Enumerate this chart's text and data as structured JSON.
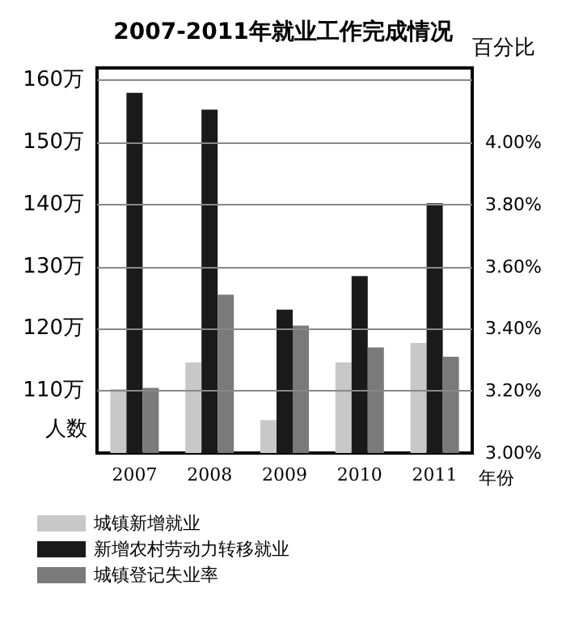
{
  "chart_data": {
    "type": "bar",
    "title": "2007-2011年就业工作完成情况",
    "xlabel": "年份",
    "ylabel": "人数",
    "y2label": "百分比",
    "categories": [
      "2007",
      "2008",
      "2009",
      "2010",
      "2011"
    ],
    "series": [
      {
        "name": "城镇新增就业",
        "color": "#c8c8c8",
        "values": [
          110.3,
          114.6,
          105.3,
          114.6,
          117.7
        ]
      },
      {
        "name": "新增农村劳动力转移就业",
        "color": "#1a1a1a",
        "values": [
          158.0,
          155.3,
          123.1,
          128.5,
          140.2
        ]
      },
      {
        "name": "城镇登记失业率",
        "color": "#7a7a7a",
        "axis": "y2",
        "values": [
          3.21,
          3.51,
          3.41,
          3.34,
          3.31
        ]
      }
    ],
    "ylim": [
      100,
      162
    ],
    "yticks": [
      {
        "value": 100,
        "label": null
      },
      {
        "value": 110,
        "label": "110万"
      },
      {
        "value": 120,
        "label": "120万"
      },
      {
        "value": 130,
        "label": "130万"
      },
      {
        "value": 140,
        "label": "140万"
      },
      {
        "value": 150,
        "label": "150万"
      },
      {
        "value": 160,
        "label": "160万"
      }
    ],
    "y2lim": [
      3.0,
      4.24
    ],
    "y2ticks": [
      {
        "value": 3.0,
        "label": "3.00%"
      },
      {
        "value": 3.2,
        "label": "3.20%"
      },
      {
        "value": 3.4,
        "label": "3.40%"
      },
      {
        "value": 3.6,
        "label": "3.60%"
      },
      {
        "value": 3.8,
        "label": "3.80%"
      },
      {
        "value": 4.0,
        "label": "4.00%"
      },
      {
        "value": 4.2,
        "label": null
      }
    ],
    "grid": "y",
    "legend": "bottom left"
  }
}
